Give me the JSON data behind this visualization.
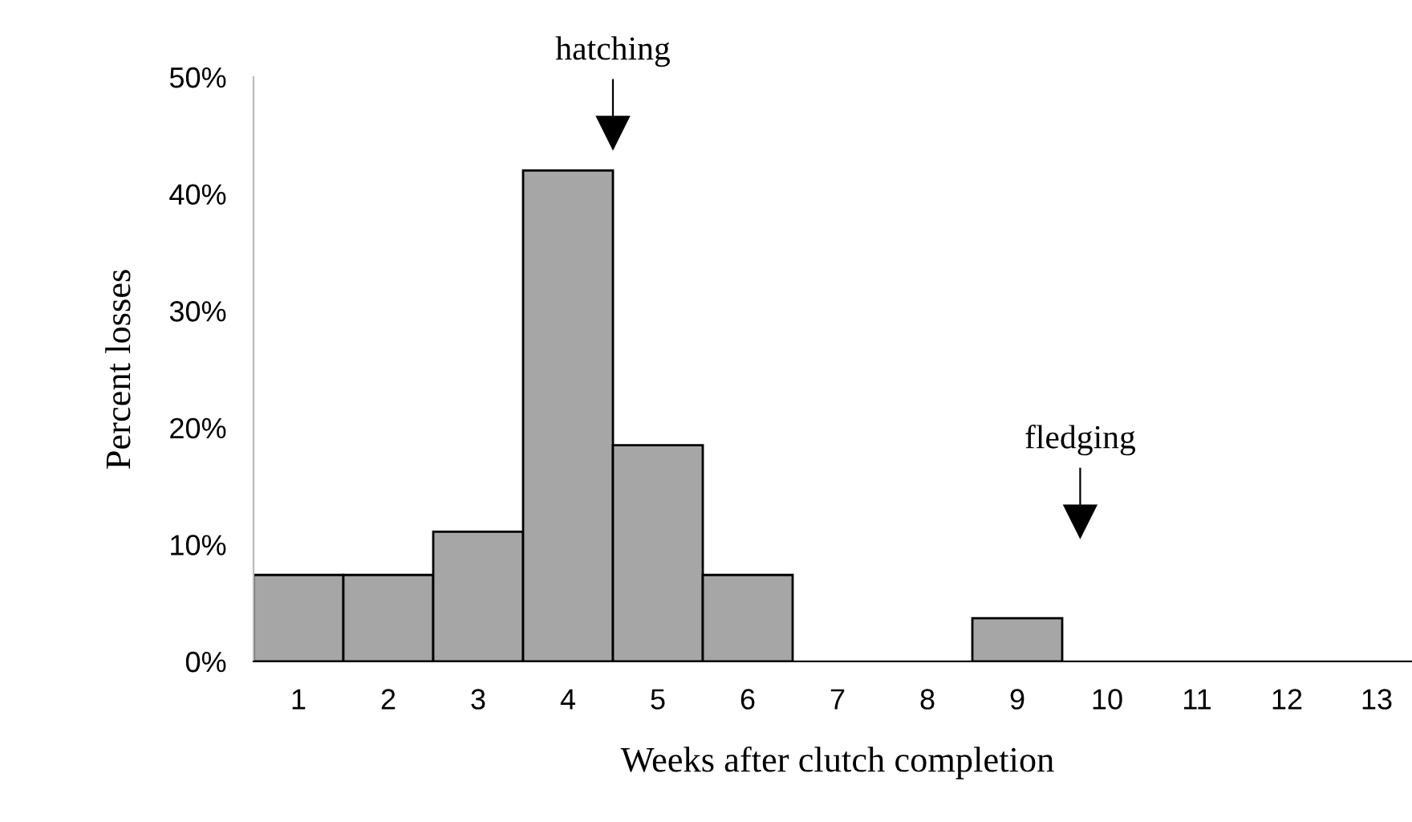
{
  "chart_data": {
    "type": "histogram",
    "xlabel": "Weeks after clutch completion",
    "ylabel": "Percent losses",
    "bins": [
      0.5,
      1.5,
      2.5,
      3.5,
      4.5,
      5.5,
      6.5,
      7.5,
      8.5,
      9.5,
      10.5,
      11.5,
      12.5,
      13.5
    ],
    "values": [
      7.4,
      7.4,
      11.1,
      42,
      18.5,
      7.4,
      0,
      0,
      3.7,
      0,
      0,
      0,
      0
    ],
    "color": "#a6a6a6",
    "xlim": [
      0.5,
      13.5
    ],
    "xticks": [
      1,
      2,
      3,
      4,
      5,
      6,
      7,
      8,
      9,
      10,
      11,
      12,
      13
    ],
    "ylim": [
      0,
      50
    ],
    "yticks": [
      {
        "value": 0,
        "label": "0%"
      },
      {
        "value": 10,
        "label": "10%"
      },
      {
        "value": 20,
        "label": "20%"
      },
      {
        "value": 30,
        "label": "30%"
      },
      {
        "value": 40,
        "label": "40%"
      },
      {
        "value": 50,
        "label": "50%"
      }
    ],
    "ref_lines": [
      {
        "axis": "x",
        "value": 4.5,
        "label": "hatching"
      },
      {
        "axis": "x",
        "value": 9.7,
        "label": "fledging"
      }
    ],
    "grid": false,
    "legend": false
  }
}
